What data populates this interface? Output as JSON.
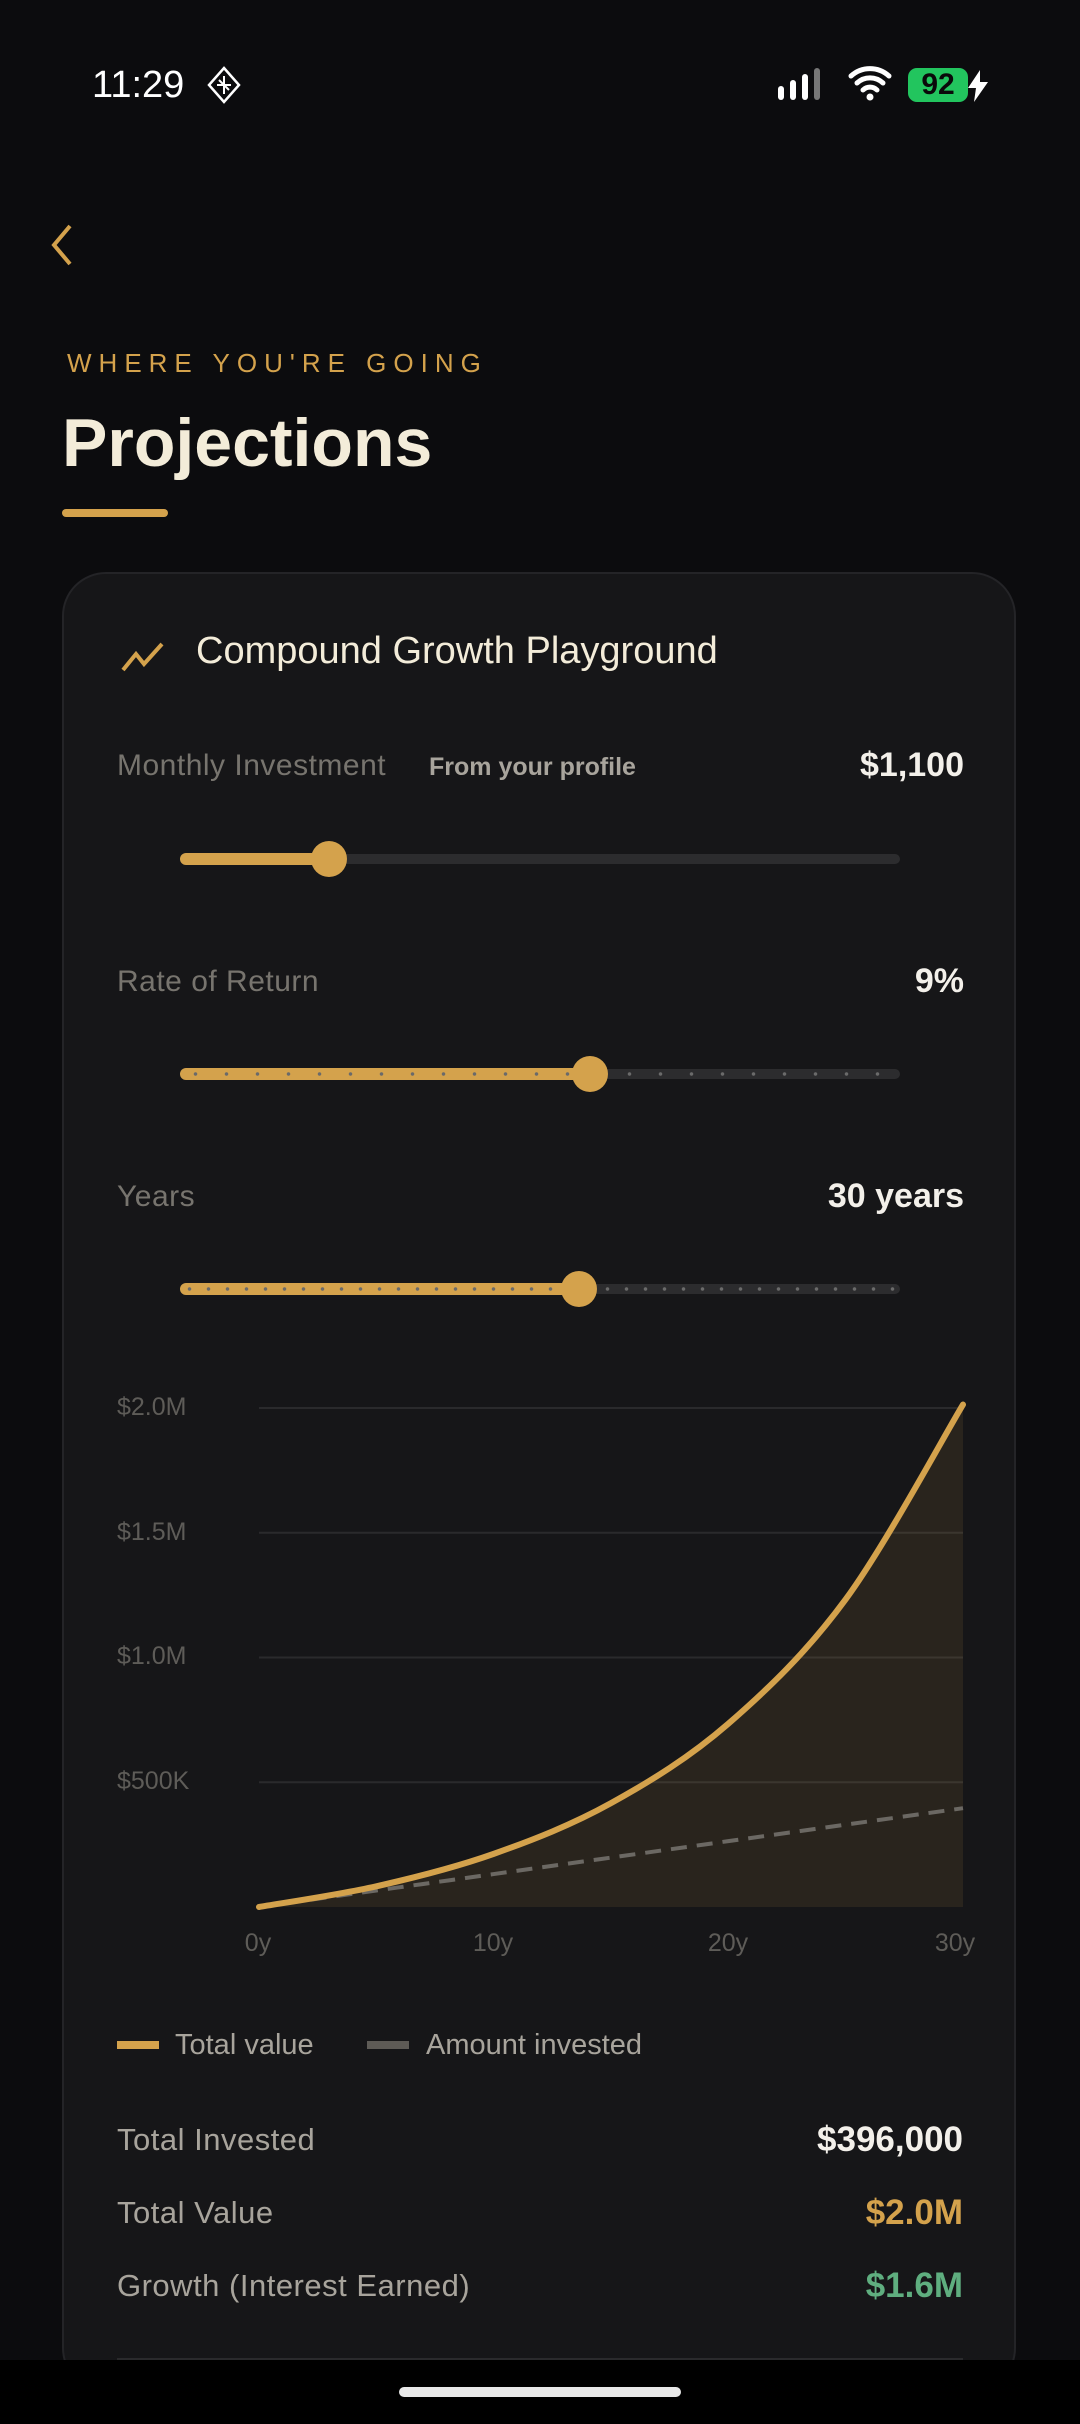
{
  "status_bar": {
    "time": "11:29",
    "battery": "92",
    "battery_color": "#22c55e"
  },
  "header": {
    "eyebrow": "WHERE YOU'RE GOING",
    "title": "Projections"
  },
  "card": {
    "title": "Compound Growth Playground",
    "icon": "trending-up-icon",
    "monthly": {
      "label": "Monthly Investment",
      "sublabel": "From your profile",
      "value": "$1,100",
      "fraction": 0.207
    },
    "rate": {
      "label": "Rate of Return",
      "value": "9%",
      "fraction": 0.57
    },
    "years": {
      "label": "Years",
      "value": "30 years",
      "fraction": 0.554
    },
    "legend": {
      "total": "Total value",
      "invested": "Amount invested"
    },
    "stats": [
      {
        "label": "Total Invested",
        "value": "$396,000",
        "color": "#f3f0ea"
      },
      {
        "label": "Total Value",
        "value": "$2.0M",
        "color": "#d4a24c"
      },
      {
        "label": "Growth (Interest Earned)",
        "value": "$1.6M",
        "color": "#5fae7f"
      }
    ]
  },
  "chart_data": {
    "type": "area",
    "x": [
      0,
      5,
      10,
      15,
      20,
      25,
      30
    ],
    "series": [
      {
        "name": "Total value",
        "values": [
          0,
          82970,
          212870,
          416240,
          734700,
          1233240,
          2013750
        ],
        "color": "#d4a24c"
      },
      {
        "name": "Amount invested",
        "values": [
          0,
          66000,
          132000,
          198000,
          264000,
          330000,
          396000
        ],
        "color": "#6b6863"
      }
    ],
    "xlim": [
      0,
      30
    ],
    "ylim": [
      0,
      2000000
    ],
    "xticks": [
      "0y",
      "10y",
      "20y",
      "30y"
    ],
    "yticks": [
      "$500K",
      "$1.0M",
      "$1.5M",
      "$2.0M"
    ],
    "grid": true,
    "legend": "bottom-left"
  }
}
